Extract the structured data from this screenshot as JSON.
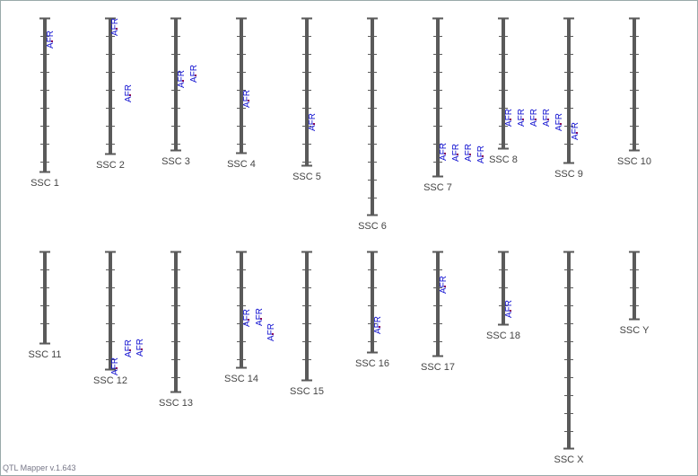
{
  "chromosomes": [
    {
      "label": "SSC 1",
      "qtls": [
        {
          "label": "AFR"
        }
      ]
    },
    {
      "label": "SSC 2",
      "qtls": [
        {
          "label": "AFR"
        },
        {
          "label": "AFR"
        }
      ]
    },
    {
      "label": "SSC 3",
      "qtls": [
        {
          "label": "AFR"
        },
        {
          "label": "AFR"
        }
      ]
    },
    {
      "label": "SSC 4",
      "qtls": [
        {
          "label": "AFR"
        }
      ]
    },
    {
      "label": "SSC 5",
      "qtls": [
        {
          "label": "AFR"
        }
      ]
    },
    {
      "label": "SSC 6",
      "qtls": []
    },
    {
      "label": "SSC 7",
      "qtls": [
        {
          "label": "AFR"
        },
        {
          "label": "AFR"
        },
        {
          "label": "AFR"
        },
        {
          "label": "AFR"
        }
      ]
    },
    {
      "label": "SSC 8",
      "qtls": [
        {
          "label": "AFR"
        },
        {
          "label": "AFR"
        },
        {
          "label": "AFR"
        },
        {
          "label": "AFR"
        },
        {
          "label": "AFR"
        }
      ]
    },
    {
      "label": "SSC 9",
      "qtls": [
        {
          "label": "AFR"
        }
      ]
    },
    {
      "label": "SSC 10",
      "qtls": []
    },
    {
      "label": "SSC 11",
      "qtls": []
    },
    {
      "label": "SSC 12",
      "qtls": [
        {
          "label": "AFR"
        },
        {
          "label": "AFR"
        },
        {
          "label": "AFR"
        }
      ]
    },
    {
      "label": "SSC 13",
      "qtls": []
    },
    {
      "label": "SSC 14",
      "qtls": [
        {
          "label": "AFR"
        },
        {
          "label": "AFR"
        },
        {
          "label": "AFR"
        }
      ]
    },
    {
      "label": "SSC 15",
      "qtls": []
    },
    {
      "label": "SSC 16",
      "qtls": [
        {
          "label": "AFR"
        }
      ]
    },
    {
      "label": "SSC 17",
      "qtls": [
        {
          "label": "AFR"
        }
      ]
    },
    {
      "label": "SSC 18",
      "qtls": [
        {
          "label": "AFR"
        }
      ]
    },
    {
      "label": "SSC X",
      "qtls": []
    },
    {
      "label": "SSC Y",
      "qtls": []
    }
  ],
  "footer": "QTL Mapper v.1.643"
}
